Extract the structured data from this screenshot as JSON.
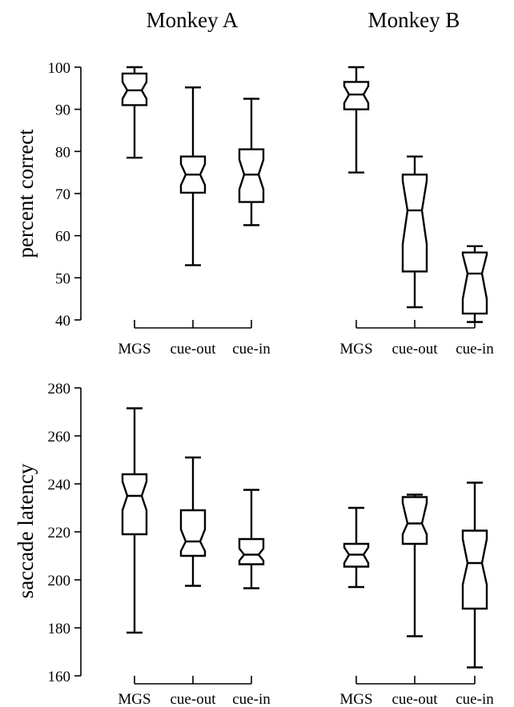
{
  "chart_data": [
    {
      "id": "A_correct",
      "type": "boxplot",
      "title": "Monkey A",
      "ylabel": "percent correct",
      "ylim": [
        40,
        100
      ],
      "yticks": [
        40,
        50,
        60,
        70,
        80,
        90,
        100
      ],
      "categories": [
        "MGS",
        "cue-out",
        "cue-in"
      ],
      "boxes": [
        {
          "category": "MGS",
          "min": 78.5,
          "q1": 91,
          "median": 94.5,
          "q3": 98.5,
          "max": 100,
          "notch_low": 92.5,
          "notch_high": 96.5
        },
        {
          "category": "cue-out",
          "min": 53,
          "q1": 70.2,
          "median": 74.5,
          "q3": 78.8,
          "max": 95.2,
          "notch_low": 72,
          "notch_high": 77
        },
        {
          "category": "cue-in",
          "min": 62.5,
          "q1": 68,
          "median": 74.5,
          "q3": 80.5,
          "max": 92.5,
          "notch_low": 71,
          "notch_high": 78
        }
      ]
    },
    {
      "id": "B_correct",
      "type": "boxplot",
      "title": "Monkey B",
      "ylabel": "",
      "ylim": [
        40,
        100
      ],
      "yticks": [],
      "categories": [
        "MGS",
        "cue-out",
        "cue-in"
      ],
      "boxes": [
        {
          "category": "MGS",
          "min": 75,
          "q1": 90,
          "median": 93.5,
          "q3": 96.5,
          "max": 100,
          "notch_low": 91.5,
          "notch_high": 95.5
        },
        {
          "category": "cue-out",
          "min": 43,
          "q1": 51.5,
          "median": 66,
          "q3": 74.5,
          "max": 78.8,
          "notch_low": 58,
          "notch_high": 73
        },
        {
          "category": "cue-in",
          "min": 39.5,
          "q1": 41.5,
          "median": 51,
          "q3": 56,
          "max": 57.5,
          "notch_low": 45,
          "notch_high": 55.5
        }
      ]
    },
    {
      "id": "A_latency",
      "type": "boxplot",
      "title": "",
      "ylabel": "saccade latency",
      "ylim": [
        160,
        280
      ],
      "yticks": [
        160,
        180,
        200,
        220,
        240,
        260,
        280
      ],
      "categories": [
        "MGS",
        "cue-out",
        "cue-in"
      ],
      "boxes": [
        {
          "category": "MGS",
          "min": 178,
          "q1": 219,
          "median": 235,
          "q3": 244,
          "max": 271.5,
          "notch_low": 229,
          "notch_high": 241
        },
        {
          "category": "cue-out",
          "min": 197.5,
          "q1": 210,
          "median": 216,
          "q3": 229,
          "max": 251,
          "notch_low": 212,
          "notch_high": 221
        },
        {
          "category": "cue-in",
          "min": 196.5,
          "q1": 206.5,
          "median": 210.5,
          "q3": 217,
          "max": 237.5,
          "notch_low": 208,
          "notch_high": 213
        }
      ]
    },
    {
      "id": "B_latency",
      "type": "boxplot",
      "title": "",
      "ylabel": "",
      "ylim": [
        160,
        280
      ],
      "yticks": [],
      "categories": [
        "MGS",
        "cue-out",
        "cue-in"
      ],
      "boxes": [
        {
          "category": "MGS",
          "min": 197,
          "q1": 205.5,
          "median": 210.5,
          "q3": 215,
          "max": 230,
          "notch_low": 207,
          "notch_high": 213.5
        },
        {
          "category": "cue-out",
          "min": 176.5,
          "q1": 215,
          "median": 223.5,
          "q3": 234.5,
          "max": 235.5,
          "notch_low": 219,
          "notch_high": 232
        },
        {
          "category": "cue-in",
          "min": 163.5,
          "q1": 188,
          "median": 207,
          "q3": 220.5,
          "max": 240.5,
          "notch_low": 198,
          "notch_high": 217
        }
      ]
    }
  ]
}
